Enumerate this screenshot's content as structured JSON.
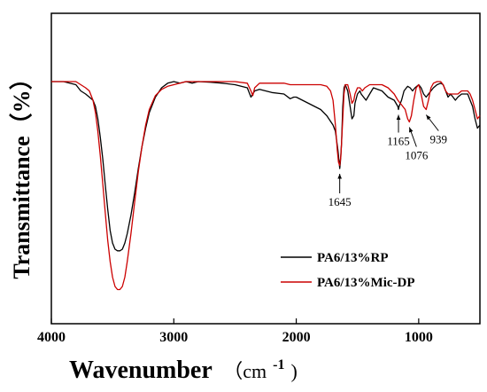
{
  "chart_data": {
    "type": "line",
    "title": "",
    "xlabel": "Wavenumber",
    "xlabel_unit_open": "（cm",
    "xlabel_unit_sup": "-1",
    "xlabel_unit_close": ")",
    "ylabel": "Transmittance（%）",
    "xlim": [
      4000,
      500
    ],
    "x_reversed": true,
    "ylim": [
      0,
      100
    ],
    "y_ticks_shown": false,
    "x_ticks": [
      4000,
      3000,
      2000,
      1000
    ],
    "x_tick_labels": [
      "4000",
      "3000",
      "2000",
      "1000"
    ],
    "legend_position": "bottom-right",
    "series": [
      {
        "name": "PA6/13%RP",
        "color": "#000000",
        "points": [
          [
            4000,
            78
          ],
          [
            3900,
            78
          ],
          [
            3800,
            77
          ],
          [
            3760,
            75
          ],
          [
            3720,
            74
          ],
          [
            3690,
            73
          ],
          [
            3660,
            72
          ],
          [
            3640,
            70
          ],
          [
            3620,
            66
          ],
          [
            3600,
            60
          ],
          [
            3580,
            53
          ],
          [
            3560,
            45
          ],
          [
            3540,
            37
          ],
          [
            3520,
            30
          ],
          [
            3500,
            26
          ],
          [
            3480,
            24
          ],
          [
            3460,
            23.5
          ],
          [
            3440,
            23.5
          ],
          [
            3420,
            24
          ],
          [
            3400,
            26
          ],
          [
            3380,
            29
          ],
          [
            3350,
            35
          ],
          [
            3320,
            42
          ],
          [
            3290,
            50
          ],
          [
            3260,
            57
          ],
          [
            3230,
            63
          ],
          [
            3200,
            68
          ],
          [
            3150,
            73
          ],
          [
            3100,
            76
          ],
          [
            3050,
            77.5
          ],
          [
            3000,
            78
          ],
          [
            2950,
            77.5
          ],
          [
            2900,
            78
          ],
          [
            2850,
            77.5
          ],
          [
            2800,
            78
          ],
          [
            2700,
            77.8
          ],
          [
            2600,
            77.5
          ],
          [
            2500,
            77
          ],
          [
            2400,
            76
          ],
          [
            2370,
            73
          ],
          [
            2340,
            75
          ],
          [
            2300,
            75.5
          ],
          [
            2200,
            74.5
          ],
          [
            2100,
            74
          ],
          [
            2050,
            72.5
          ],
          [
            2020,
            73
          ],
          [
            2000,
            73
          ],
          [
            1900,
            71
          ],
          [
            1800,
            69
          ],
          [
            1750,
            67
          ],
          [
            1700,
            64
          ],
          [
            1680,
            62
          ],
          [
            1660,
            56
          ],
          [
            1650,
            52
          ],
          [
            1645,
            50
          ],
          [
            1640,
            52
          ],
          [
            1630,
            58
          ],
          [
            1620,
            70
          ],
          [
            1610,
            76
          ],
          [
            1600,
            77
          ],
          [
            1580,
            75
          ],
          [
            1560,
            70
          ],
          [
            1545,
            66
          ],
          [
            1530,
            67
          ],
          [
            1520,
            71
          ],
          [
            1500,
            74
          ],
          [
            1480,
            75
          ],
          [
            1470,
            74
          ],
          [
            1450,
            73
          ],
          [
            1430,
            72
          ],
          [
            1400,
            74
          ],
          [
            1370,
            76
          ],
          [
            1300,
            75
          ],
          [
            1250,
            73
          ],
          [
            1200,
            72
          ],
          [
            1170,
            70
          ],
          [
            1165,
            69
          ],
          [
            1160,
            70
          ],
          [
            1140,
            72
          ],
          [
            1120,
            75
          ],
          [
            1100,
            76
          ],
          [
            1090,
            76.5
          ],
          [
            1070,
            76
          ],
          [
            1050,
            75
          ],
          [
            1030,
            76
          ],
          [
            1000,
            77
          ],
          [
            980,
            76
          ],
          [
            960,
            74
          ],
          [
            939,
            73
          ],
          [
            920,
            74
          ],
          [
            900,
            75
          ],
          [
            880,
            76
          ],
          [
            850,
            77
          ],
          [
            820,
            77.5
          ],
          [
            800,
            77
          ],
          [
            780,
            75
          ],
          [
            760,
            73
          ],
          [
            740,
            74
          ],
          [
            720,
            73
          ],
          [
            700,
            72
          ],
          [
            680,
            73
          ],
          [
            650,
            74
          ],
          [
            620,
            74
          ],
          [
            600,
            74
          ],
          [
            580,
            72
          ],
          [
            560,
            70
          ],
          [
            540,
            66
          ],
          [
            520,
            63
          ],
          [
            500,
            64
          ]
        ]
      },
      {
        "name": "PA6/13%Mic-DP",
        "color": "#cc0000",
        "points": [
          [
            4000,
            78
          ],
          [
            3900,
            78
          ],
          [
            3800,
            78
          ],
          [
            3760,
            77
          ],
          [
            3720,
            76
          ],
          [
            3690,
            75
          ],
          [
            3660,
            72
          ],
          [
            3640,
            68
          ],
          [
            3620,
            62
          ],
          [
            3600,
            54
          ],
          [
            3580,
            45
          ],
          [
            3560,
            36
          ],
          [
            3540,
            27
          ],
          [
            3520,
            20
          ],
          [
            3500,
            15
          ],
          [
            3480,
            12
          ],
          [
            3460,
            11
          ],
          [
            3440,
            11
          ],
          [
            3420,
            12
          ],
          [
            3400,
            15
          ],
          [
            3380,
            20
          ],
          [
            3350,
            29
          ],
          [
            3320,
            39
          ],
          [
            3290,
            49
          ],
          [
            3260,
            57
          ],
          [
            3230,
            64
          ],
          [
            3200,
            69
          ],
          [
            3150,
            73.5
          ],
          [
            3100,
            75.5
          ],
          [
            3050,
            76.5
          ],
          [
            3000,
            77
          ],
          [
            2950,
            77.5
          ],
          [
            2900,
            78
          ],
          [
            2850,
            78
          ],
          [
            2800,
            78
          ],
          [
            2700,
            78
          ],
          [
            2600,
            78
          ],
          [
            2500,
            78
          ],
          [
            2400,
            77.5
          ],
          [
            2370,
            75
          ],
          [
            2355,
            73.5
          ],
          [
            2340,
            76
          ],
          [
            2300,
            77.5
          ],
          [
            2200,
            77.5
          ],
          [
            2100,
            77.5
          ],
          [
            2050,
            77
          ],
          [
            2000,
            77
          ],
          [
            1900,
            77
          ],
          [
            1800,
            77
          ],
          [
            1750,
            76.5
          ],
          [
            1720,
            75
          ],
          [
            1700,
            72
          ],
          [
            1680,
            64
          ],
          [
            1665,
            56
          ],
          [
            1655,
            52
          ],
          [
            1645,
            51
          ],
          [
            1635,
            54
          ],
          [
            1620,
            66
          ],
          [
            1610,
            74
          ],
          [
            1600,
            77
          ],
          [
            1580,
            77
          ],
          [
            1560,
            74
          ],
          [
            1545,
            71
          ],
          [
            1530,
            72
          ],
          [
            1520,
            74
          ],
          [
            1500,
            76
          ],
          [
            1480,
            76
          ],
          [
            1460,
            75
          ],
          [
            1440,
            76
          ],
          [
            1400,
            77
          ],
          [
            1370,
            77
          ],
          [
            1300,
            77
          ],
          [
            1250,
            76
          ],
          [
            1200,
            74
          ],
          [
            1170,
            72
          ],
          [
            1150,
            71
          ],
          [
            1130,
            70
          ],
          [
            1110,
            69
          ],
          [
            1090,
            66
          ],
          [
            1076,
            65
          ],
          [
            1060,
            67
          ],
          [
            1040,
            72
          ],
          [
            1020,
            76
          ],
          [
            1000,
            77
          ],
          [
            980,
            74
          ],
          [
            960,
            70
          ],
          [
            939,
            69
          ],
          [
            920,
            72
          ],
          [
            900,
            76
          ],
          [
            880,
            77.5
          ],
          [
            850,
            78
          ],
          [
            820,
            78
          ],
          [
            800,
            77
          ],
          [
            780,
            75
          ],
          [
            760,
            74
          ],
          [
            740,
            74
          ],
          [
            720,
            74
          ],
          [
            700,
            74
          ],
          [
            680,
            74
          ],
          [
            650,
            75
          ],
          [
            620,
            75
          ],
          [
            600,
            75
          ],
          [
            580,
            74
          ],
          [
            560,
            72
          ],
          [
            540,
            69
          ],
          [
            520,
            66
          ],
          [
            500,
            67
          ]
        ]
      }
    ],
    "annotations": [
      {
        "label": "1645",
        "x": 1645,
        "y": 50
      },
      {
        "label": "1165",
        "x": 1165,
        "y": 69
      },
      {
        "label": "1076",
        "x": 1076,
        "y": 65
      },
      {
        "label": "939",
        "x": 939,
        "y": 69
      }
    ]
  }
}
